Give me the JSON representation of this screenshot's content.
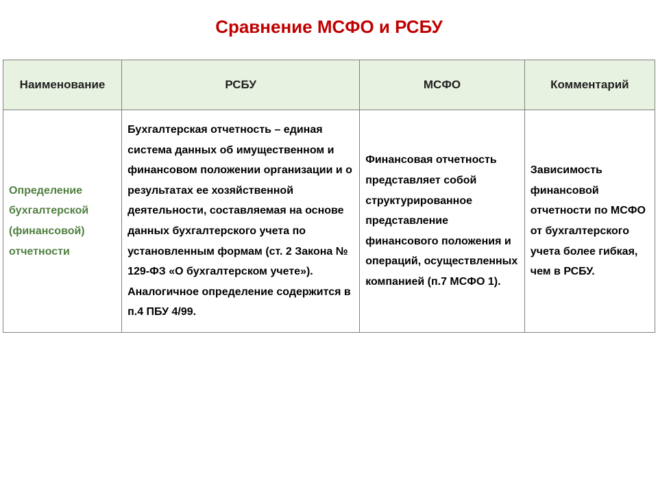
{
  "title": "Сравнение МСФО и РСБУ",
  "table": {
    "columns": [
      "Наименование",
      "РСБУ",
      "МСФО",
      "Комментарий"
    ],
    "column_widths_pct": [
      18.2,
      36.5,
      25.3,
      20
    ],
    "header_bg": "#e8f2e0",
    "header_fontsize": 17,
    "border_color": "#808080",
    "rows": [
      {
        "label": "Определение бухгалтерской (финансовой) отчетности",
        "label_color": "#4f7f3f",
        "rsbu": "Бухгалтерская отчетность – единая система данных об имущественном и финансовом положении организации и о результатах ее хозяйственной деятельности, составляемая на основе данных бухгалтерского учета по установленным формам (ст. 2 Закона № 129-ФЗ «О бухгалтерском учете»). Аналогичное определение содержится в п.4 ПБУ 4/99.",
        "msfo": "Финансовая отчетность представляет собой структурированное представление финансового положения и операций, осуществленных компанией (п.7 МСФО 1).",
        "comment": "Зависимость финансовой отчетности по МСФО от бухгалтерского учета более гибкая, чем в РСБУ."
      }
    ]
  },
  "title_color": "#c00000",
  "title_fontsize": 26,
  "body_fontsize": 16,
  "body_line_height": 1.85,
  "background_color": "#ffffff"
}
